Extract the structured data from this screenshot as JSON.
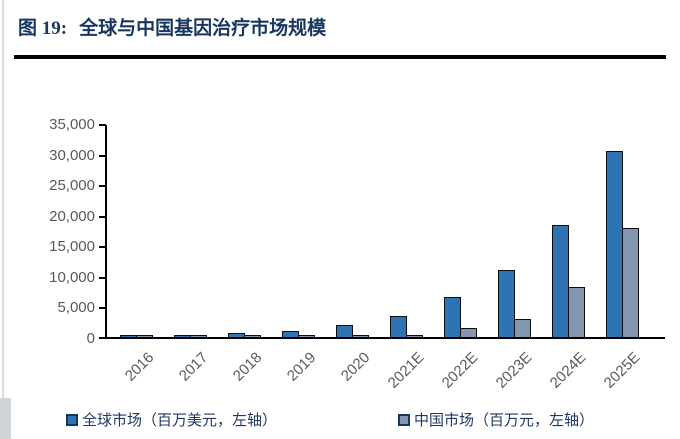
{
  "figure": {
    "label": "图 19:",
    "title": "全球与中国基因治疗市场规模"
  },
  "chart_data": {
    "type": "bar",
    "title": "全球与中国基因治疗市场规模",
    "categories": [
      "2016",
      "2017",
      "2018",
      "2019",
      "2020",
      "2021E",
      "2022E",
      "2023E",
      "2024E",
      "2025E"
    ],
    "series": [
      {
        "name": "全球市场（百万美元，左轴）",
        "color": "#2e74b5",
        "values": [
          50,
          90,
          600,
          1000,
          2000,
          3500,
          6500,
          11000,
          18300,
          30500
        ]
      },
      {
        "name": "中国市场（百万元，左轴）",
        "color": "#8496b0",
        "values": [
          0,
          0,
          0,
          0,
          25,
          300,
          1500,
          2950,
          8200,
          17900
        ]
      }
    ],
    "ylim": [
      0,
      35000
    ],
    "y_tick_step": 5000,
    "y_tick_labels": [
      "0",
      "5,000",
      "10,000",
      "15,000",
      "20,000",
      "25,000",
      "30,000",
      "35,000"
    ],
    "xlabel": "",
    "ylabel": "",
    "grid": false,
    "legend_position": "bottom",
    "x_label_rotation": -45
  },
  "colors": {
    "title_navy": "#17375e",
    "axis_text_gray": "#595959",
    "axis_line": "#000000",
    "bar_border": "#0d0d0d",
    "global_bar": "#2e74b5",
    "china_bar": "#8496b0"
  }
}
